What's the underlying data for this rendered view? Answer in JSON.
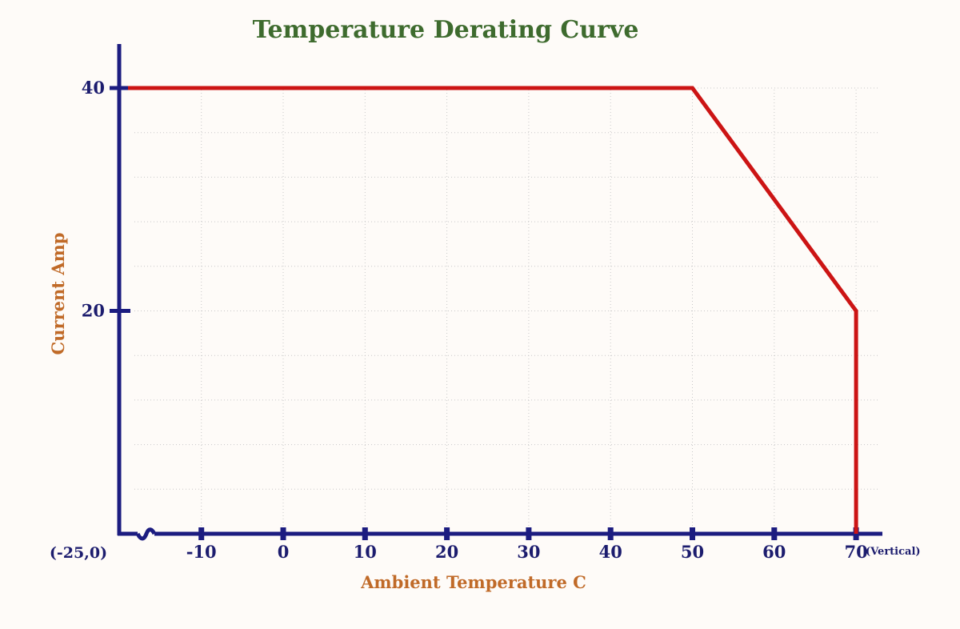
{
  "chart_data": {
    "type": "line",
    "title": "Temperature Derating Curve",
    "xlabel": "Ambient Temperature C",
    "ylabel": "Current Amp",
    "origin_label": "(-25,0)",
    "x_axis_suffix": "(Vertical)",
    "x_ticks": [
      -10,
      0,
      10,
      20,
      30,
      40,
      50,
      60,
      70
    ],
    "x_tick_labels": [
      "-10",
      "0",
      "10",
      "20",
      "30",
      "40",
      "50",
      "60",
      "70"
    ],
    "y_ticks": [
      20,
      40
    ],
    "y_tick_labels": [
      "20",
      "40"
    ],
    "xlim": [
      -20,
      72
    ],
    "ylim": [
      0,
      44
    ],
    "grid": true,
    "axis_break": true,
    "series": [
      {
        "name": "Vertical",
        "color": "#cc1414",
        "x": [
          -19,
          50,
          70,
          70
        ],
        "y": [
          40,
          40,
          20,
          0
        ]
      }
    ]
  }
}
